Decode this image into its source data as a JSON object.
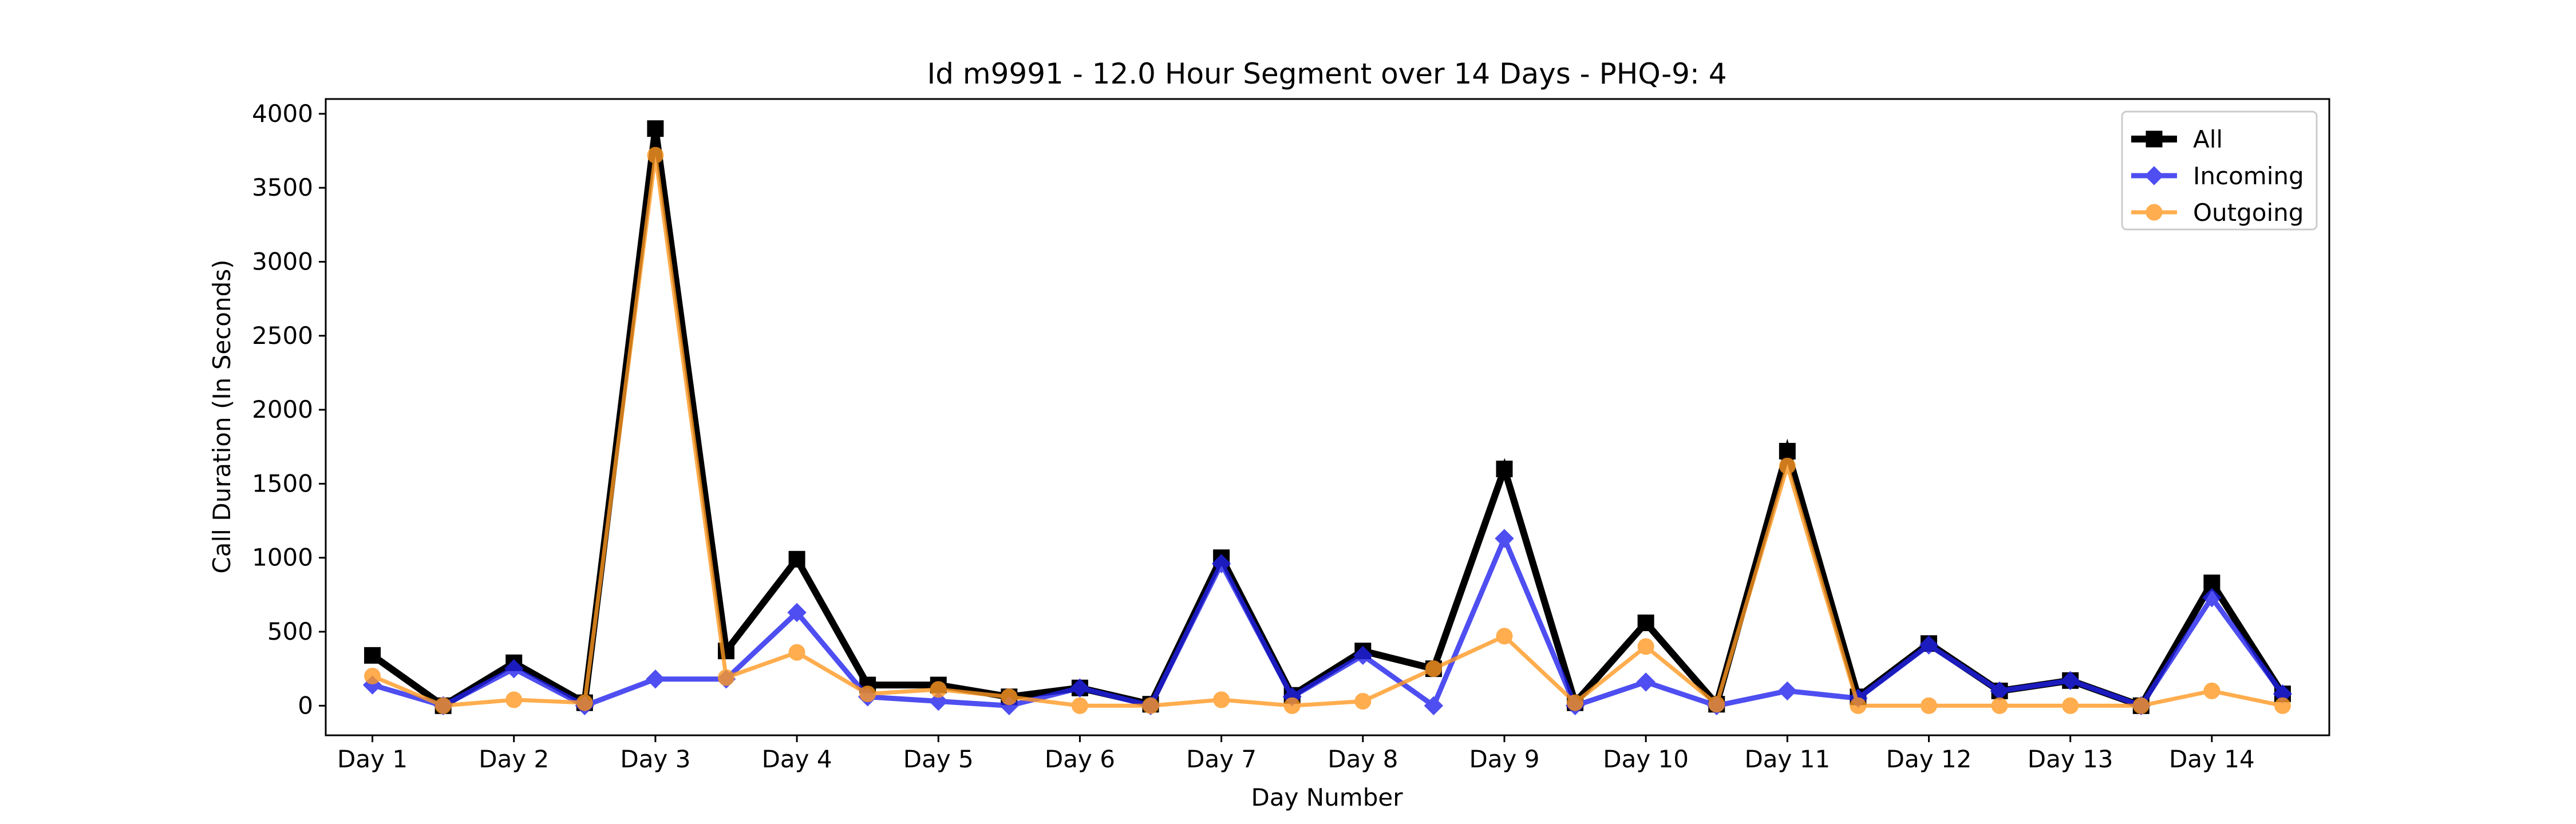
{
  "chart_data": {
    "type": "line",
    "title": "Id m9991 - 12.0 Hour Segment over 14 Days - PHQ-9: 4",
    "xlabel": "Day Number",
    "ylabel": "Call Duration (In Seconds)",
    "ylim": [
      -200,
      4100
    ],
    "yticks": [
      0,
      500,
      1000,
      1500,
      2000,
      2500,
      3000,
      3500,
      4000
    ],
    "xticks": [
      1,
      3,
      5,
      7,
      9,
      11,
      13,
      15,
      17,
      19,
      21,
      23,
      25,
      27
    ],
    "xtick_labels": [
      "Day 1",
      "Day 2",
      "Day 3",
      "Day 4",
      "Day 5",
      "Day 6",
      "Day 7",
      "Day 8",
      "Day 9",
      "Day 10",
      "Day 11",
      "Day 12",
      "Day 13",
      "Day 14"
    ],
    "x": [
      1,
      2,
      3,
      4,
      5,
      6,
      7,
      8,
      9,
      10,
      11,
      12,
      13,
      14,
      15,
      16,
      17,
      18,
      19,
      20,
      21,
      22,
      23,
      24,
      25,
      26,
      27,
      28
    ],
    "legend_position": "top-right",
    "grid": false,
    "series": [
      {
        "name": "All",
        "color": "#000000",
        "marker": "square",
        "values": [
          340,
          0,
          290,
          20,
          3900,
          370,
          990,
          140,
          140,
          60,
          120,
          10,
          1000,
          70,
          370,
          250,
          1600,
          20,
          560,
          10,
          1720,
          60,
          420,
          100,
          170,
          0,
          830,
          80
        ]
      },
      {
        "name": "Incoming",
        "color": "#2222ee",
        "marker": "diamond",
        "values": [
          140,
          0,
          250,
          0,
          180,
          180,
          630,
          60,
          30,
          0,
          120,
          0,
          960,
          60,
          340,
          0,
          1130,
          0,
          160,
          0,
          100,
          50,
          410,
          100,
          170,
          0,
          730,
          80
        ]
      },
      {
        "name": "Outgoing",
        "color": "#ff9922",
        "marker": "circle",
        "values": [
          200,
          0,
          40,
          20,
          3720,
          190,
          360,
          80,
          110,
          60,
          0,
          0,
          40,
          0,
          30,
          250,
          470,
          20,
          400,
          10,
          1620,
          0,
          0,
          0,
          0,
          0,
          100,
          0
        ]
      }
    ]
  }
}
